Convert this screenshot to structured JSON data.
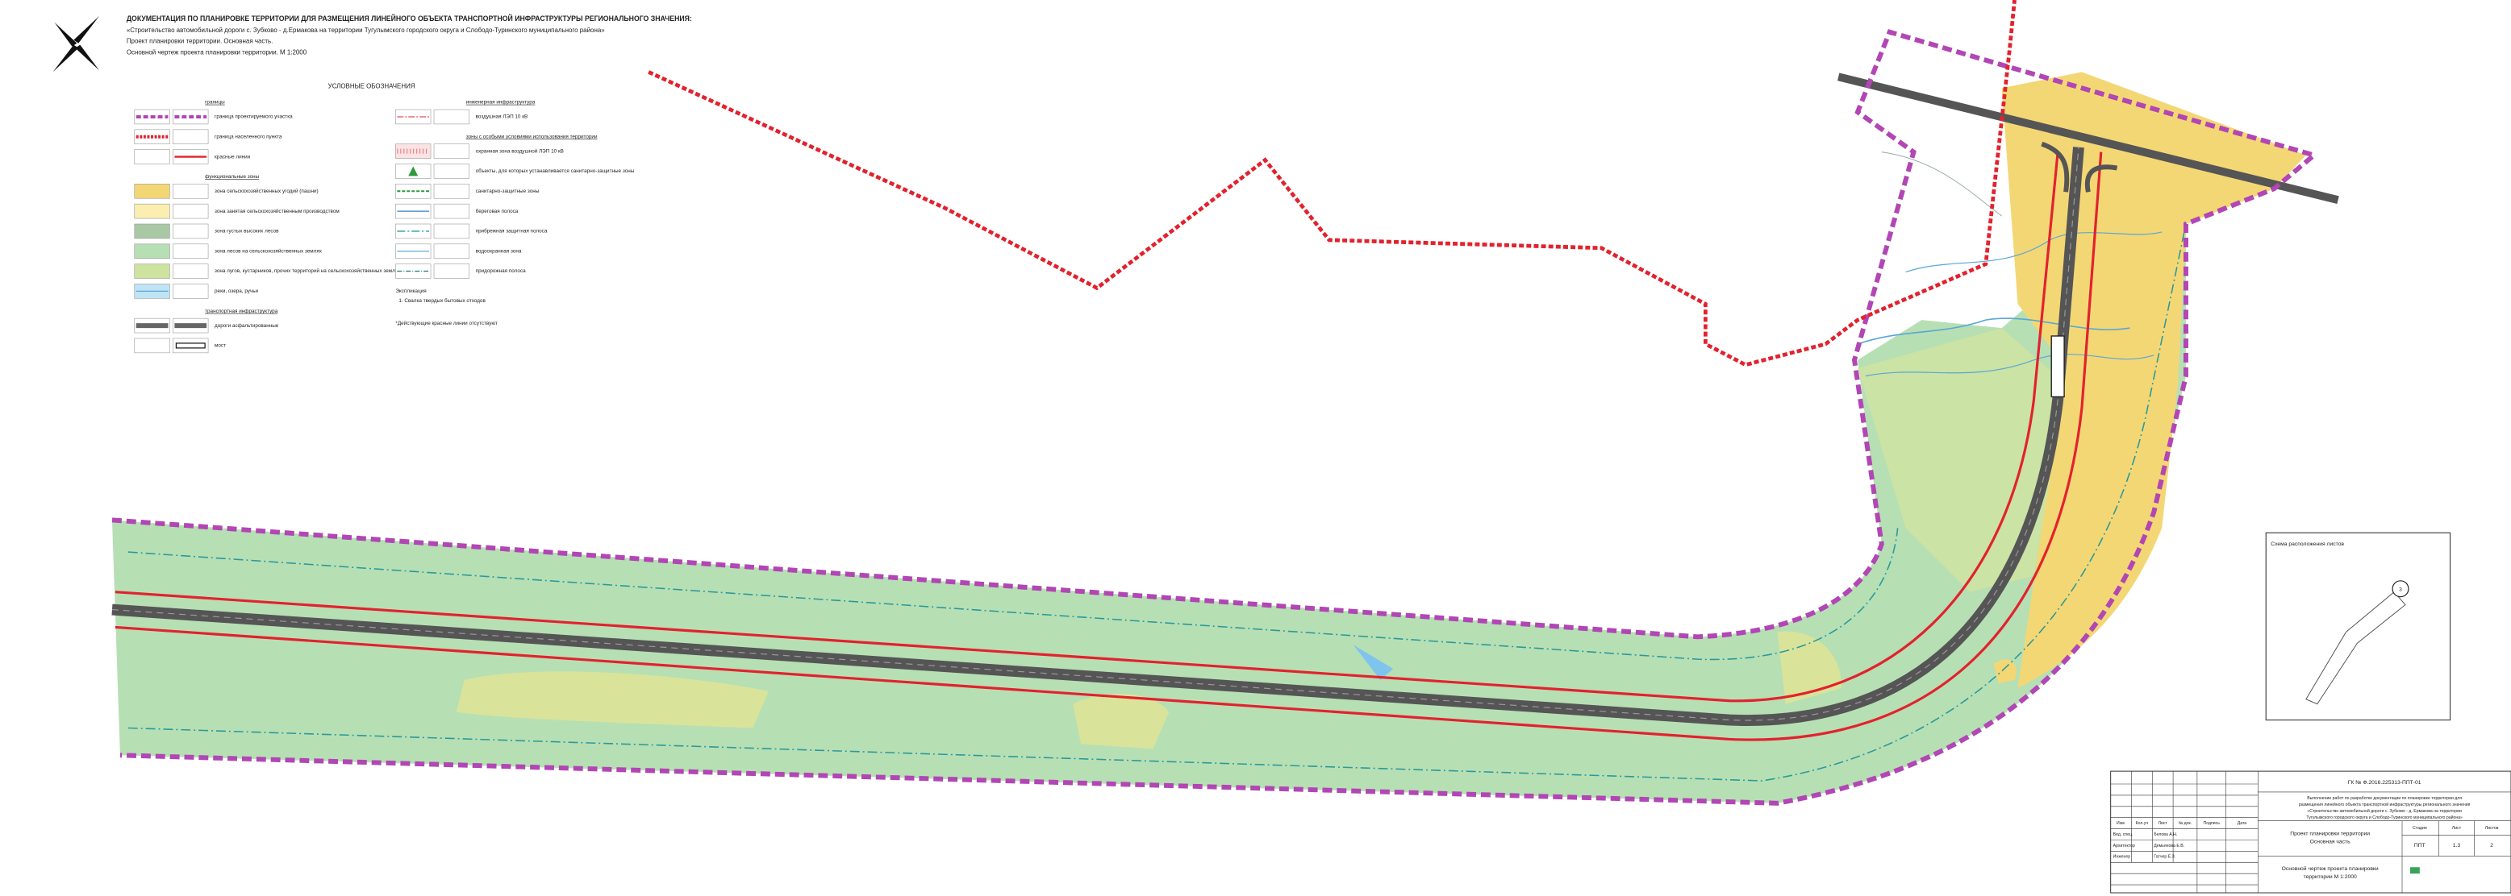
{
  "header": {
    "title": "ДОКУМЕНТАЦИЯ ПО ПЛАНИРОВКЕ ТЕРРИТОРИИ ДЛЯ РАЗМЕЩЕНИЯ ЛИНЕЙНОГО ОБЪЕКТА ТРАНСПОРТНОЙ ИНФРАСТРУКТУРЫ РЕГИОНАЛЬНОГО ЗНАЧЕНИЯ:",
    "project": "«Строительство автомобильной дороги с. Зубково - д.Ермакова на территории Тугулымского городского округа и Слободо-Туринского муниципального района»",
    "part": "Проект планировки территории. Основная часть.",
    "drawing": "Основной чертеж проекта планировки территории.  М 1:2000"
  },
  "legend": {
    "title": "УСЛОВНЫЕ ОБОЗНАЧЕНИЯ",
    "left": [
      {
        "heading": "границы",
        "items": [
          "граница проектируемого участка",
          "граница населенного пункта",
          "красные линии"
        ]
      },
      {
        "heading": "функциональные зоны",
        "items": [
          "зона сельскохозяйственных угодий (пашни)",
          "зона занятая сельскохозяйственным производством",
          "зона густых высоких лесов",
          "зона лесов на сельскохозяйственных землях",
          "зона лугов, кустарников, прочих территорий на сельскохозяйственных землях",
          "реки, озера, ручьи"
        ]
      },
      {
        "heading": "транспортная инфраструктура",
        "items": [
          "дороги асфальтированные",
          "мост"
        ]
      }
    ],
    "right": [
      {
        "heading": "инженерная инфраструктура",
        "items": [
          "воздушная ЛЭП 10 кВ"
        ]
      },
      {
        "heading": "зоны с особыми условиями использования территории",
        "items": [
          "охранная зона воздушной ЛЭП 10 кВ",
          "объекты, для которых устанавливается санитарно-защитные зоны",
          "санитарно-защитные зоны",
          "береговая полоса",
          "прибрежная защитная полоса",
          "водоохранная зона",
          "придорожная полоса"
        ]
      }
    ],
    "explication": {
      "heading": "Экспликация",
      "items": [
        "1.  Свалка твердых бытовых отходов"
      ]
    },
    "note": "*Действующие красные линии отсутствуют"
  },
  "inset": {
    "title": "Схема расположения листов",
    "sheet": "3"
  },
  "title_block": {
    "code": "ГК № Ф.2016.225313-ППТ-01",
    "description": [
      "Выполнение работ по разработке документации по планировке территории для",
      "размещения линейного объекта транспортной инфраструктуры регионального значения",
      "«Строительство автомобильной дороги с. Зубково - д. Ермакова на территории",
      "Тугулымского городского округа и Слободо-Туринского муниципального района»"
    ],
    "columns": [
      "Изм.",
      "Кол.уч",
      "Лист",
      "№ док.",
      "Подпись",
      "Дата"
    ],
    "staff": [
      [
        "Вед. спец.",
        "Белова А.Н."
      ],
      [
        "Архитектор",
        "Демьянова Е.В."
      ],
      [
        "Инженер",
        "Гатчер Е.З."
      ]
    ],
    "part": [
      "Проект планировки территории",
      "Основная часть"
    ],
    "sheet_title": [
      "Основной чертеж проекта планировки",
      "территории М 1:2000"
    ],
    "stage_header": [
      "Стадия",
      "Лист",
      "Листов"
    ],
    "stage_values": [
      "ППТ",
      "1.3",
      "2"
    ]
  }
}
